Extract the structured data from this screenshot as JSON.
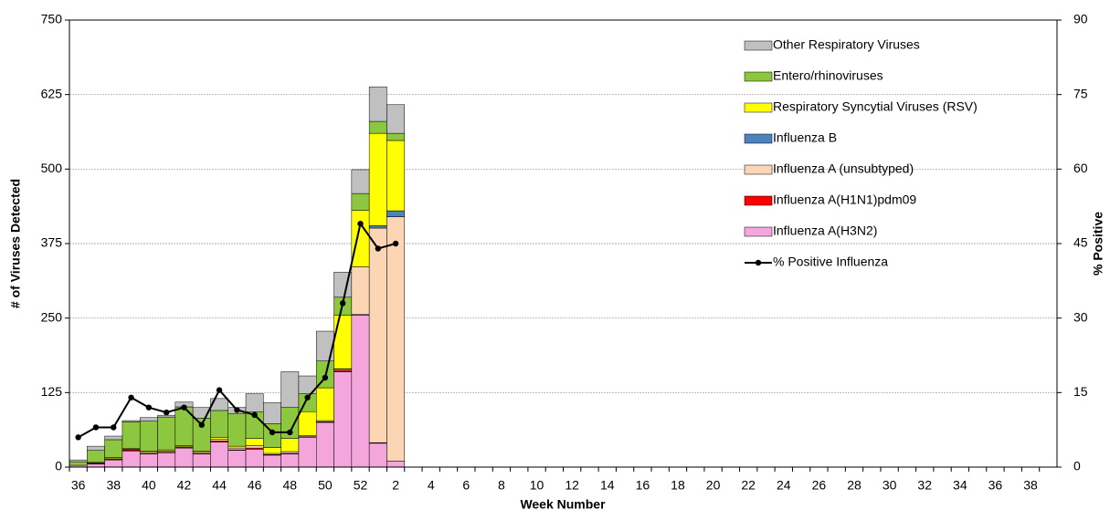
{
  "chart_data": {
    "type": "stacked_bar_line",
    "xlabel": "Week Number",
    "ylabel": "# of Viruses Detected",
    "y2label": "% Positive",
    "categories": [
      36,
      null,
      38,
      null,
      40,
      null,
      42,
      null,
      44,
      null,
      46,
      null,
      48,
      null,
      50,
      null,
      52,
      null,
      2,
      null,
      4,
      null,
      6,
      null,
      8,
      null,
      10,
      null,
      12,
      null,
      14,
      null,
      16,
      null,
      18,
      null,
      20,
      null,
      22,
      null,
      24,
      null,
      26,
      null,
      28,
      null,
      30,
      null,
      32,
      null,
      34,
      null,
      36,
      null,
      38,
      null
    ],
    "ylim": [
      0,
      750
    ],
    "yticks": [
      0,
      125,
      250,
      375,
      500,
      625,
      750
    ],
    "y2lim": [
      0,
      90
    ],
    "y2ticks": [
      0,
      15,
      30,
      45,
      60,
      75,
      90
    ],
    "grid": true,
    "legend": "upper right",
    "series": [
      {
        "name": "Influenza A(H3N2)",
        "color": "#f4a6dc",
        "values": [
          3,
          5,
          12,
          27,
          22,
          24,
          32,
          22,
          42,
          28,
          30,
          20,
          22,
          50,
          75,
          160,
          255,
          40,
          10,
          null,
          null,
          null,
          null,
          null,
          null,
          null,
          null,
          null,
          null,
          null,
          null,
          null,
          null,
          null,
          null,
          null,
          null,
          null,
          null,
          null,
          null,
          null,
          null,
          null,
          null,
          null,
          null,
          null,
          null,
          null,
          null,
          null,
          null,
          null,
          null,
          null
        ]
      },
      {
        "name": "Influenza A(H1N1)pdm09",
        "color": "#ff0000",
        "values": [
          0,
          1,
          1,
          2,
          1,
          1,
          1,
          1,
          2,
          1,
          2,
          1,
          1,
          1,
          1,
          2,
          1,
          1,
          0,
          null,
          null,
          null,
          null,
          null,
          null,
          null,
          null,
          null,
          null,
          null,
          null,
          null,
          null,
          null,
          null,
          null,
          null,
          null,
          null,
          null,
          null,
          null,
          null,
          null,
          null,
          null,
          null,
          null,
          null,
          null,
          null,
          null,
          null,
          null,
          null,
          null
        ]
      },
      {
        "name": "Influenza A (unsubtyped)",
        "color": "#fcd5b5",
        "values": [
          0,
          1,
          1,
          1,
          2,
          2,
          1,
          2,
          3,
          3,
          4,
          2,
          3,
          2,
          2,
          2,
          80,
          360,
          410,
          null,
          null,
          null,
          null,
          null,
          null,
          null,
          null,
          null,
          null,
          null,
          null,
          null,
          null,
          null,
          null,
          null,
          null,
          null,
          null,
          null,
          null,
          null,
          null,
          null,
          null,
          null,
          null,
          null,
          null,
          null,
          null,
          null,
          null,
          null,
          null,
          null
        ]
      },
      {
        "name": "Influenza B",
        "color": "#4f81bd",
        "values": [
          0,
          0,
          0,
          0,
          0,
          0,
          0,
          0,
          0,
          0,
          0,
          0,
          0,
          0,
          0,
          1,
          0,
          4,
          10,
          null,
          null,
          null,
          null,
          null,
          null,
          null,
          null,
          null,
          null,
          null,
          null,
          null,
          null,
          null,
          null,
          null,
          null,
          null,
          null,
          null,
          null,
          null,
          null,
          null,
          null,
          null,
          null,
          null,
          null,
          null,
          null,
          null,
          null,
          null,
          null,
          null
        ]
      },
      {
        "name": "Respiratory Syncytial Viruses (RSV)",
        "color": "#ffff00",
        "values": [
          0,
          1,
          2,
          1,
          2,
          2,
          2,
          2,
          3,
          3,
          12,
          10,
          22,
          40,
          55,
          90,
          95,
          155,
          118,
          null,
          null,
          null,
          null,
          null,
          null,
          null,
          null,
          null,
          null,
          null,
          null,
          null,
          null,
          null,
          null,
          null,
          null,
          null,
          null,
          null,
          null,
          null,
          null,
          null,
          null,
          null,
          null,
          null,
          null,
          null,
          null,
          null,
          null,
          null,
          null,
          null
        ]
      },
      {
        "name": "Entero/rhinoviruses",
        "color": "#8dc63f",
        "values": [
          6,
          20,
          30,
          45,
          50,
          55,
          65,
          55,
          45,
          55,
          45,
          40,
          52,
          30,
          45,
          30,
          28,
          20,
          12,
          null,
          null,
          null,
          null,
          null,
          null,
          null,
          null,
          null,
          null,
          null,
          null,
          null,
          null,
          null,
          null,
          null,
          null,
          null,
          null,
          null,
          null,
          null,
          null,
          null,
          null,
          null,
          null,
          null,
          null,
          null,
          null,
          null,
          null,
          null,
          null,
          null
        ]
      },
      {
        "name": "Other Respiratory Viruses",
        "color": "#c0c0c0",
        "values": [
          3,
          7,
          6,
          2,
          6,
          3,
          8,
          18,
          20,
          10,
          30,
          35,
          60,
          30,
          50,
          42,
          40,
          58,
          48,
          null,
          null,
          null,
          null,
          null,
          null,
          null,
          null,
          null,
          null,
          null,
          null,
          null,
          null,
          null,
          null,
          null,
          null,
          null,
          null,
          null,
          null,
          null,
          null,
          null,
          null,
          null,
          null,
          null,
          null,
          null,
          null,
          null,
          null,
          null,
          null,
          null
        ]
      },
      {
        "name": "% Positive Influenza",
        "color": "#000000",
        "type": "line",
        "axis": "y2",
        "values": [
          6,
          8,
          8,
          14,
          12,
          11,
          12,
          8.5,
          15.5,
          11.5,
          10.5,
          7,
          7,
          14,
          18,
          33,
          49,
          44,
          45,
          null,
          null,
          null,
          null,
          null,
          null,
          null,
          null,
          null,
          null,
          null,
          null,
          null,
          null,
          null,
          null,
          null,
          null,
          null,
          null,
          null,
          null,
          null,
          null,
          null,
          null,
          null,
          null,
          null,
          null,
          null,
          null,
          null,
          null,
          null,
          null,
          null
        ]
      }
    ]
  }
}
